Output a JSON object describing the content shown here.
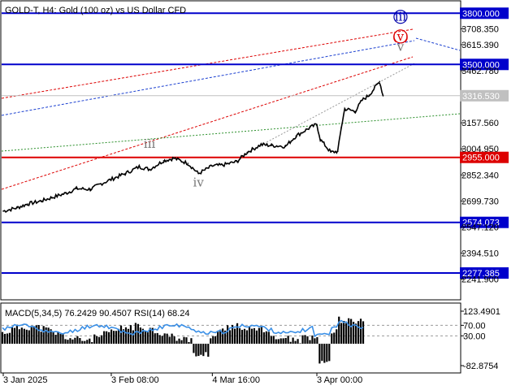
{
  "header": {
    "symbol_text": "GOLD-T, H4:  Gold (100 oz) vs US Dollar CFD",
    "indicator_text": "MACD(5,34,5) 76.2429 90.4507 RSI(14) 68.24"
  },
  "chart_data": {
    "type": "line",
    "title": "GOLD-T, H4:  Gold (100 oz) vs US Dollar CFD",
    "xlabel": "",
    "ylabel": "",
    "ylim": [
      2125,
      3868
    ],
    "x_ticks": [
      "3 Jan 2025",
      "3 Feb 08:00",
      "4 Mar 16:00",
      "3 Apr 00:00"
    ],
    "y_ticks": [
      "3708.350",
      "3615.390",
      "3462.780",
      "3157.560",
      "3004.950",
      "2852.340",
      "2699.730",
      "2547.120",
      "2394.510",
      "2241.900"
    ],
    "current_price": "3316.530",
    "colors": {
      "bull": "#000000",
      "level_blue": "#0000cc",
      "level_red": "#dd0000",
      "label_bg_blue": "#0000cc",
      "label_bg_red": "#dd0000"
    },
    "series": [
      {
        "name": "",
        "x": [
          "2025-01-03",
          "2025-01-07",
          "2025-01-10",
          "2025-01-14",
          "2025-01-17",
          "2025-01-21",
          "2025-01-24",
          "2025-01-28",
          "2025-01-31",
          "2025-02-04",
          "2025-02-07",
          "2025-02-11",
          "2025-02-14",
          "2025-02-18",
          "2025-02-21",
          "2025-02-25",
          "2025-02-28",
          "2025-03-04",
          "2025-03-07",
          "2025-03-11",
          "2025-03-14",
          "2025-03-18",
          "2025-03-21",
          "2025-03-25",
          "2025-03-28",
          "2025-04-01",
          "2025-04-03",
          "2025-04-04",
          "2025-04-07",
          "2025-04-09",
          "2025-04-10",
          "2025-04-11",
          "2025-04-14",
          "2025-04-16",
          "2025-04-18",
          "2025-04-21",
          "2025-04-22"
        ],
        "values": [
          2640,
          2660,
          2682,
          2700,
          2720,
          2745,
          2772,
          2768,
          2800,
          2835,
          2860,
          2900,
          2885,
          2935,
          2950,
          2920,
          2860,
          2905,
          2910,
          2930,
          2985,
          3030,
          3025,
          3020,
          3080,
          3130,
          3148,
          3060,
          2985,
          2990,
          3130,
          3240,
          3225,
          3290,
          3320,
          3400,
          3316
        ]
      }
    ],
    "levels": [
      {
        "price": 3800.0,
        "label": "3800.000",
        "color": "#0000cc"
      },
      {
        "price": 3500.0,
        "label": "3500.000",
        "color": "#0000cc"
      },
      {
        "price": 2955.0,
        "label": "2955.000",
        "color": "#dd0000"
      },
      {
        "price": 2574.073,
        "label": "2574.073",
        "color": "#0000cc"
      },
      {
        "price": 2277.385,
        "label": "2277.385",
        "color": "#0000cc"
      }
    ],
    "wave_labels": [
      {
        "text": "iii",
        "date": "2025-02-14",
        "price": 3010,
        "color": "#777777",
        "circled": false
      },
      {
        "text": "iv",
        "date": "2025-02-28",
        "price": 2785,
        "color": "#777777",
        "circled": false
      },
      {
        "text": "v",
        "date": "2025-04-27",
        "price": 3580,
        "color": "#777777",
        "circled": false
      },
      {
        "text": "(v)",
        "date": "2025-04-27",
        "price": 3640,
        "color": "#dd0000",
        "circled": true
      },
      {
        "text": "iii",
        "date": "2025-04-27",
        "price": 3755,
        "color": "#0000aa",
        "circled": true
      }
    ],
    "indicator": {
      "name": "MACD(5,34,5) / RSI(14)",
      "macd_main": 76.2429,
      "macd_signal": 90.4507,
      "rsi": 68.24,
      "y_ticks": [
        "123.4901",
        "70.00",
        "30.00",
        "-82.8754"
      ]
    }
  }
}
